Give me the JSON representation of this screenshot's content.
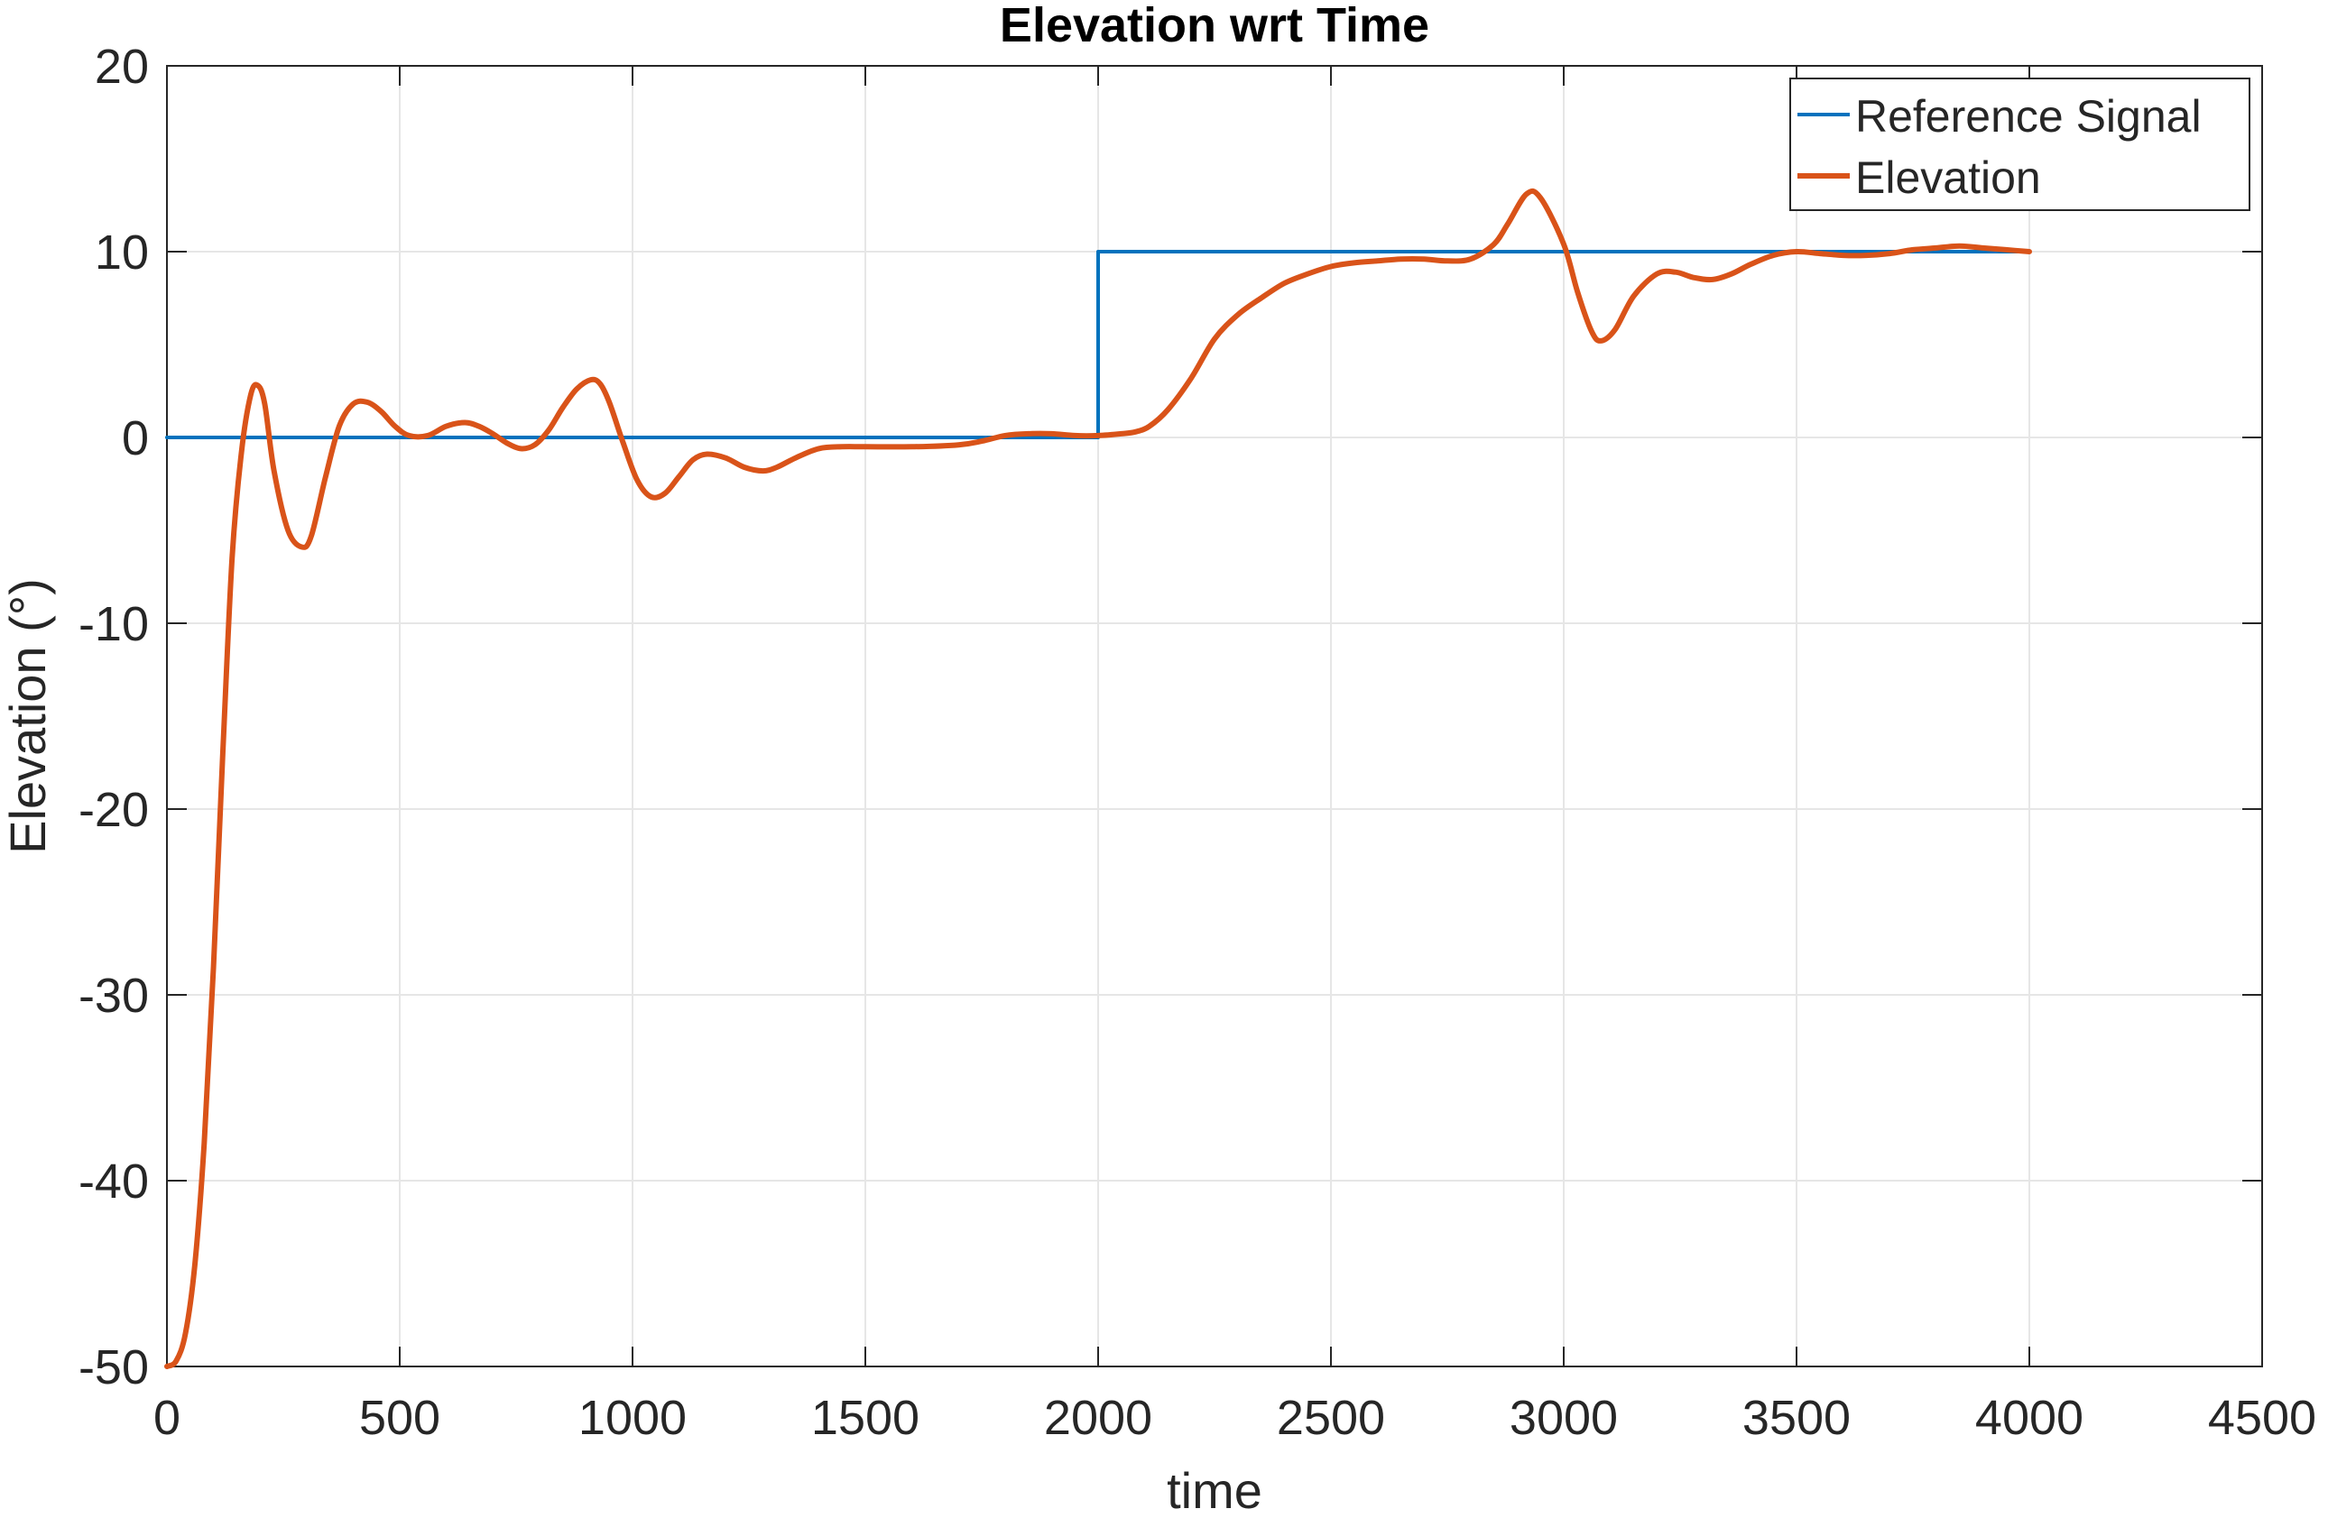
{
  "chart_data": {
    "type": "line",
    "title": "Elevation wrt Time",
    "xlabel": "time",
    "ylabel": "Elevation (°)",
    "xlim": [
      0,
      4500
    ],
    "ylim": [
      -50,
      20
    ],
    "xticks": [
      0,
      500,
      1000,
      1500,
      2000,
      2500,
      3000,
      3500,
      4000,
      4500
    ],
    "yticks": [
      -50,
      -40,
      -30,
      -20,
      -10,
      0,
      10,
      20
    ],
    "xtick_labels": [
      "0",
      "500",
      "1000",
      "1500",
      "2000",
      "2500",
      "3000",
      "3500",
      "4000",
      "4500"
    ],
    "ytick_labels": [
      "-50",
      "-40",
      "-30",
      "-20",
      "-10",
      "0",
      "10",
      "20"
    ],
    "grid": true,
    "legend_position": "top-right",
    "series": [
      {
        "name": "Reference Signal",
        "color": "#0072BD",
        "x": [
          0,
          2000,
          2000,
          4000
        ],
        "y": [
          0,
          0,
          10,
          10
        ]
      },
      {
        "name": "Elevation",
        "color": "#D95319",
        "x": [
          0,
          20,
          40,
          60,
          80,
          100,
          120,
          140,
          160,
          180,
          195,
          210,
          230,
          260,
          290,
          310,
          340,
          370,
          400,
          430,
          460,
          490,
          520,
          560,
          600,
          640,
          670,
          700,
          730,
          760,
          790,
          820,
          850,
          880,
          910,
          930,
          950,
          980,
          1010,
          1040,
          1070,
          1100,
          1130,
          1160,
          1200,
          1240,
          1280,
          1310,
          1350,
          1400,
          1450,
          1500,
          1600,
          1700,
          1750,
          1800,
          1850,
          1900,
          1950,
          2000,
          2050,
          2080,
          2110,
          2150,
          2200,
          2250,
          2300,
          2350,
          2400,
          2450,
          2500,
          2550,
          2600,
          2650,
          2700,
          2750,
          2800,
          2850,
          2880,
          2920,
          2950,
          3000,
          3030,
          3060,
          3080,
          3110,
          3150,
          3200,
          3240,
          3280,
          3320,
          3360,
          3400,
          3450,
          3500,
          3550,
          3600,
          3650,
          3700,
          3750,
          3800,
          3850,
          3900,
          3950,
          4000
        ],
        "y": [
          -50,
          -49.7,
          -48.2,
          -44.5,
          -38,
          -28.5,
          -17,
          -6.5,
          -0.8,
          2.3,
          2.8,
          1.8,
          -1.8,
          -5,
          -5.9,
          -5.3,
          -2.2,
          0.6,
          1.8,
          1.9,
          1.4,
          0.6,
          0.1,
          0.1,
          0.6,
          0.8,
          0.6,
          0.2,
          -0.3,
          -0.6,
          -0.4,
          0.4,
          1.6,
          2.6,
          3.1,
          2.9,
          1.9,
          -0.3,
          -2.3,
          -3.2,
          -3,
          -2.1,
          -1.2,
          -0.9,
          -1.1,
          -1.6,
          -1.8,
          -1.6,
          -1.1,
          -0.6,
          -0.5,
          -0.5,
          -0.5,
          -0.4,
          -0.2,
          0.1,
          0.2,
          0.2,
          0.1,
          0.1,
          0.2,
          0.3,
          0.6,
          1.5,
          3.2,
          5.3,
          6.6,
          7.5,
          8.3,
          8.8,
          9.2,
          9.4,
          9.5,
          9.6,
          9.6,
          9.5,
          9.6,
          10.4,
          11.5,
          13.1,
          12.9,
          10.4,
          7.8,
          5.7,
          5.2,
          5.8,
          7.6,
          8.8,
          8.9,
          8.6,
          8.5,
          8.8,
          9.3,
          9.8,
          10,
          9.9,
          9.8,
          9.8,
          9.9,
          10.1,
          10.2,
          10.3,
          10.2,
          10.1,
          10
        ]
      }
    ]
  }
}
